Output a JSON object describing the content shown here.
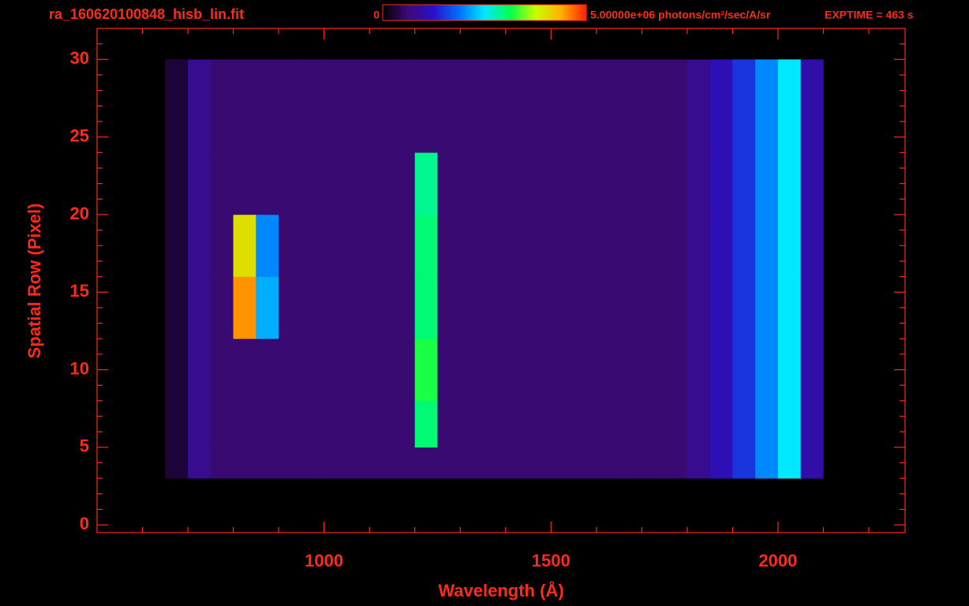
{
  "chart_data": {
    "type": "heatmap",
    "title": "ra_160620100848_hisb_lin.fit",
    "exptime": "EXPTIME = 463 s",
    "x_label": "Wavelength (Å)",
    "y_label": "Spatial Row (Pixel)",
    "xlim": [
      500,
      2280
    ],
    "ylim": [
      -0.5,
      32
    ],
    "xticks": [
      1000,
      1500,
      2000
    ],
    "yticks": [
      0,
      5,
      10,
      15,
      20,
      25,
      30
    ],
    "xminorticks": [
      600,
      700,
      800,
      900,
      1100,
      1200,
      1300,
      1400,
      1600,
      1700,
      1800,
      1900,
      2100,
      2200
    ],
    "yminorticks": [
      1,
      2,
      3,
      4,
      6,
      7,
      8,
      9,
      11,
      12,
      13,
      14,
      16,
      17,
      18,
      19,
      21,
      22,
      23,
      24,
      26,
      27,
      28,
      29,
      31
    ],
    "axis_color": "#ff2a1a",
    "colorbar": {
      "lim": [
        0,
        5000000
      ],
      "ticks": [
        0,
        {
          "value": 5000000,
          "label": "5.00000e+06 photons/cm²/sec/A/sr"
        }
      ]
    },
    "colorscale": [
      "#000000",
      "#3c0a78",
      "#2a10c8",
      "#0070ff",
      "#00e8ff",
      "#00ff50",
      "#c8ff00",
      "#ffb000",
      "#ff2000"
    ],
    "xbins": [
      650,
      700,
      750,
      800,
      850,
      900,
      950,
      1000,
      1050,
      1100,
      1150,
      1200,
      1250,
      1300,
      1350,
      1400,
      1450,
      1500,
      1550,
      1600,
      1650,
      1700,
      1750,
      1800,
      1850,
      1900,
      1950,
      2000,
      2050,
      2100
    ],
    "ybins": [
      3,
      5,
      8,
      12,
      16,
      20,
      24,
      27,
      30
    ],
    "z": [
      [
        300000,
        800000,
        600000,
        600000,
        600000,
        600000,
        600000,
        600000,
        600000,
        600000,
        600000,
        600000,
        600000,
        600000,
        600000,
        600000,
        600000,
        600000,
        600000,
        600000,
        600000,
        600000,
        600000,
        800000,
        1100000,
        1500000,
        2000000,
        2500000,
        1000000
      ],
      [
        300000,
        800000,
        600000,
        600000,
        600000,
        600000,
        600000,
        600000,
        600000,
        600000,
        600000,
        3000000,
        600000,
        600000,
        600000,
        600000,
        600000,
        600000,
        600000,
        600000,
        600000,
        600000,
        600000,
        800000,
        1100000,
        1500000,
        2000000,
        2500000,
        1000000
      ],
      [
        300000,
        800000,
        600000,
        600000,
        600000,
        600000,
        600000,
        600000,
        600000,
        600000,
        600000,
        3200000,
        600000,
        600000,
        600000,
        600000,
        600000,
        600000,
        600000,
        600000,
        600000,
        600000,
        600000,
        800000,
        1100000,
        1500000,
        2000000,
        2500000,
        1000000
      ],
      [
        300000,
        800000,
        600000,
        4500000,
        2200000,
        600000,
        600000,
        600000,
        600000,
        600000,
        600000,
        3000000,
        600000,
        600000,
        600000,
        600000,
        600000,
        600000,
        600000,
        600000,
        600000,
        600000,
        600000,
        800000,
        1100000,
        1500000,
        2000000,
        2500000,
        1000000
      ],
      [
        300000,
        800000,
        600000,
        4000000,
        2000000,
        600000,
        600000,
        600000,
        600000,
        600000,
        600000,
        3000000,
        600000,
        600000,
        600000,
        600000,
        600000,
        600000,
        600000,
        600000,
        600000,
        600000,
        600000,
        800000,
        1100000,
        1500000,
        2000000,
        2500000,
        1000000
      ],
      [
        300000,
        800000,
        600000,
        600000,
        600000,
        600000,
        600000,
        600000,
        600000,
        600000,
        600000,
        2900000,
        600000,
        600000,
        600000,
        600000,
        600000,
        600000,
        600000,
        600000,
        600000,
        600000,
        600000,
        800000,
        1100000,
        1500000,
        2000000,
        2500000,
        1000000
      ],
      [
        300000,
        800000,
        600000,
        600000,
        600000,
        600000,
        600000,
        600000,
        600000,
        600000,
        600000,
        600000,
        600000,
        600000,
        600000,
        600000,
        600000,
        600000,
        600000,
        600000,
        600000,
        600000,
        600000,
        800000,
        1100000,
        1500000,
        2000000,
        2500000,
        1000000
      ],
      [
        300000,
        800000,
        600000,
        600000,
        600000,
        600000,
        600000,
        600000,
        600000,
        600000,
        600000,
        600000,
        600000,
        600000,
        600000,
        600000,
        600000,
        600000,
        600000,
        600000,
        600000,
        600000,
        600000,
        800000,
        1100000,
        1500000,
        2000000,
        2500000,
        1000000
      ]
    ]
  }
}
